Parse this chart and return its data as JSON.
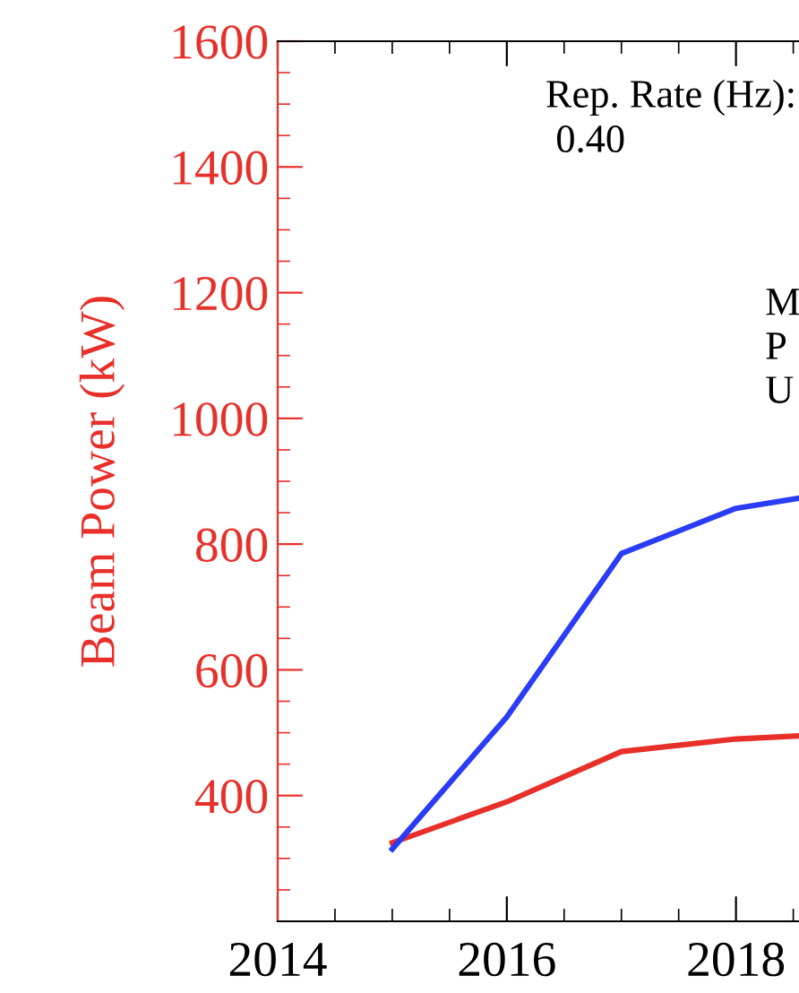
{
  "chart_data": {
    "type": "line",
    "ylabel": "Beam Power (kW)",
    "series": [
      {
        "color": "#e8302a",
        "x": [
          2015,
          2016,
          2017,
          2018,
          2018.55
        ],
        "values": [
          325,
          390,
          470,
          490,
          495
        ]
      },
      {
        "color": "#2a3cf5",
        "x": [
          2015,
          2016,
          2017,
          2018,
          2018.55
        ],
        "values": [
          315,
          525,
          785,
          857,
          873
        ]
      }
    ],
    "xlim": [
      2014,
      2018.55
    ],
    "xticks": [
      2014,
      2016,
      2018
    ],
    "ylim": [
      200,
      1600
    ],
    "yticks": [
      400,
      600,
      800,
      1000,
      1200,
      1400,
      1600
    ],
    "annotations": [
      "Rep. Rate (Hz):",
      "0.40",
      "M",
      "P",
      "U"
    ],
    "grid": false,
    "legend": false,
    "marker": "none",
    "line_style": "solid"
  }
}
